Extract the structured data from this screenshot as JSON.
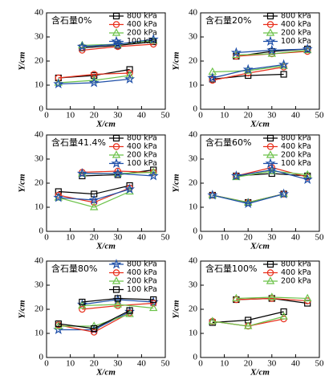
{
  "chart_data": [
    {
      "type": "line",
      "title": "含石量0%",
      "xlabel": "X/cm",
      "ylabel": "Y/cm",
      "xlim": [
        0,
        50
      ],
      "ylim": [
        0,
        40
      ],
      "xticks": [
        0,
        10,
        20,
        30,
        40,
        50
      ],
      "yticks": [
        0,
        10,
        20,
        30,
        40
      ],
      "series": [
        {
          "name": "800 kPa",
          "color": "#000000",
          "marker": "square",
          "x": [
            5,
            20,
            35,
            null,
            15,
            30,
            45
          ],
          "values": [
            13,
            14,
            16.5,
            null,
            25.5,
            26.5,
            28
          ]
        },
        {
          "name": "400 kPa",
          "color": "#e8301c",
          "marker": "circle",
          "x": [
            5,
            20,
            35,
            null,
            15,
            30,
            45
          ],
          "values": [
            13,
            14.5,
            15,
            null,
            24.5,
            26,
            27
          ]
        },
        {
          "name": "200 kPa",
          "color": "#6cc24a",
          "marker": "triangle",
          "x": [
            5,
            20,
            35,
            null,
            15,
            30,
            45
          ],
          "values": [
            11,
            12,
            14,
            null,
            26.5,
            27,
            28.5
          ]
        },
        {
          "name": "100 kPa",
          "color": "#1f4fa8",
          "marker": "star",
          "x": [
            5,
            20,
            35,
            null,
            15,
            30,
            45
          ],
          "values": [
            10.5,
            11,
            12.5,
            null,
            26,
            27,
            29
          ]
        }
      ]
    },
    {
      "type": "line",
      "title": "含石量20%",
      "xlabel": "X/cm",
      "ylabel": "Y/cm",
      "xlim": [
        0,
        50
      ],
      "ylim": [
        0,
        40
      ],
      "xticks": [
        0,
        10,
        20,
        30,
        40,
        50
      ],
      "yticks": [
        0,
        10,
        20,
        30,
        40
      ],
      "series": [
        {
          "name": "800 kPa",
          "color": "#000000",
          "marker": "square",
          "x": [
            5,
            20,
            35,
            null,
            15,
            30,
            45
          ],
          "values": [
            12.5,
            14,
            14.5,
            null,
            22,
            24,
            25
          ]
        },
        {
          "name": "400 kPa",
          "color": "#e8301c",
          "marker": "circle",
          "x": [
            5,
            20,
            35,
            null,
            15,
            30,
            45
          ],
          "values": [
            12,
            15,
            17.5,
            null,
            22,
            23,
            24
          ]
        },
        {
          "name": "200 kPa",
          "color": "#6cc24a",
          "marker": "triangle",
          "x": [
            5,
            20,
            35,
            null,
            15,
            30,
            45
          ],
          "values": [
            15.5,
            16,
            18,
            null,
            22.5,
            23,
            24.5
          ]
        },
        {
          "name": "100 kPa",
          "color": "#1f4fa8",
          "marker": "star",
          "x": [
            5,
            20,
            35,
            null,
            15,
            30,
            45
          ],
          "values": [
            13,
            16.5,
            18.5,
            null,
            23.5,
            24.5,
            25
          ]
        }
      ]
    },
    {
      "type": "line",
      "title": "含石量41.4%",
      "xlabel": "X/cm",
      "ylabel": "Y/cm",
      "xlim": [
        0,
        50
      ],
      "ylim": [
        0,
        40
      ],
      "xticks": [
        0,
        10,
        20,
        30,
        40,
        50
      ],
      "yticks": [
        0,
        10,
        20,
        30,
        40
      ],
      "series": [
        {
          "name": "800 kPa",
          "color": "#000000",
          "marker": "square",
          "x": [
            5,
            20,
            35,
            null,
            15,
            30,
            45
          ],
          "values": [
            16.5,
            15.5,
            19,
            null,
            23,
            23.5,
            25.5
          ]
        },
        {
          "name": "400 kPa",
          "color": "#e8301c",
          "marker": "circle",
          "x": [
            5,
            20,
            35,
            null,
            15,
            30,
            45
          ],
          "values": [
            15,
            12,
            18,
            null,
            24.5,
            25,
            24.5
          ]
        },
        {
          "name": "200 kPa",
          "color": "#6cc24a",
          "marker": "triangle",
          "x": [
            5,
            20,
            35,
            null,
            15,
            30,
            45
          ],
          "values": [
            14,
            10,
            16.5,
            null,
            24,
            24,
            24.5
          ]
        },
        {
          "name": "100 kPa",
          "color": "#1f4fa8",
          "marker": "star",
          "x": [
            5,
            20,
            35,
            null,
            15,
            30,
            45
          ],
          "values": [
            14,
            13,
            17.5,
            null,
            24,
            24,
            23
          ]
        }
      ]
    },
    {
      "type": "line",
      "title": "含石量60%",
      "xlabel": "X/cm",
      "ylabel": "Y/cm",
      "xlim": [
        0,
        50
      ],
      "ylim": [
        0,
        40
      ],
      "xticks": [
        0,
        10,
        20,
        30,
        40,
        50
      ],
      "yticks": [
        0,
        10,
        20,
        30,
        40
      ],
      "series": [
        {
          "name": "800 kPa",
          "color": "#000000",
          "marker": "square",
          "x": [
            5,
            20,
            35,
            null,
            15,
            30,
            45
          ],
          "values": [
            15,
            12,
            15.5,
            null,
            23,
            24,
            23
          ]
        },
        {
          "name": "400 kPa",
          "color": "#e8301c",
          "marker": "circle",
          "x": [
            5,
            20,
            35,
            null,
            15,
            30,
            45
          ],
          "values": [
            15,
            12,
            15.5,
            null,
            23,
            26.5,
            22.5
          ]
        },
        {
          "name": "200 kPa",
          "color": "#6cc24a",
          "marker": "triangle",
          "x": [
            5,
            20,
            35,
            null,
            15,
            30,
            45
          ],
          "values": [
            15,
            12,
            15.5,
            null,
            22.5,
            25,
            23.5
          ]
        },
        {
          "name": "100 kPa",
          "color": "#1f4fa8",
          "marker": "star",
          "x": [
            5,
            20,
            35,
            null,
            15,
            30,
            45
          ],
          "values": [
            15,
            11.5,
            15.5,
            null,
            23,
            25.5,
            21.5
          ]
        }
      ]
    },
    {
      "type": "line",
      "title": "含石量80%",
      "xlabel": "X/cm",
      "ylabel": "Y/cm",
      "xlim": [
        0,
        50
      ],
      "ylim": [
        0,
        40
      ],
      "xticks": [
        0,
        10,
        20,
        30,
        40,
        50
      ],
      "yticks": [
        0,
        10,
        20,
        30,
        40
      ],
      "series": [
        {
          "name": "800 kPa",
          "color": "#1f4fa8",
          "marker": "star",
          "x": [
            5,
            20,
            35,
            null,
            15,
            30,
            45
          ],
          "values": [
            11.5,
            11.5,
            19,
            null,
            22,
            24,
            23
          ]
        },
        {
          "name": "400 kPa",
          "color": "#e8301c",
          "marker": "circle",
          "x": [
            5,
            20,
            35,
            null,
            15,
            30,
            45
          ],
          "values": [
            13.5,
            10.5,
            18.5,
            null,
            20,
            21.5,
            22.5
          ]
        },
        {
          "name": "200 kPa",
          "color": "#6cc24a",
          "marker": "triangle",
          "x": [
            5,
            20,
            35,
            null,
            15,
            30,
            45
          ],
          "values": [
            13,
            13,
            18,
            null,
            21.5,
            22,
            20.5
          ]
        },
        {
          "name": "100 kPa",
          "color": "#000000",
          "marker": "square",
          "x": [
            5,
            20,
            35,
            null,
            15,
            30,
            45
          ],
          "values": [
            14,
            12,
            19.5,
            null,
            23,
            24.5,
            24
          ]
        }
      ]
    },
    {
      "type": "line",
      "title": "含石量100%",
      "xlabel": "X/cm",
      "ylabel": "Y/cm",
      "xlim": [
        0,
        50
      ],
      "ylim": [
        0,
        40
      ],
      "xticks": [
        0,
        10,
        20,
        30,
        40,
        50
      ],
      "yticks": [
        0,
        10,
        20,
        30,
        40
      ],
      "series": [
        {
          "name": "800 kPa",
          "color": "#000000",
          "marker": "square",
          "x": [
            5,
            20,
            35,
            null,
            15,
            30,
            45
          ],
          "values": [
            14.5,
            15.5,
            19,
            null,
            24,
            24.5,
            22.5
          ]
        },
        {
          "name": "400 kPa",
          "color": "#e8301c",
          "marker": "circle",
          "x": [
            5,
            20,
            35,
            null,
            15,
            30,
            45
          ],
          "values": [
            15,
            13,
            16,
            null,
            24,
            24.5,
            23.5
          ]
        },
        {
          "name": "200 kPa",
          "color": "#6cc24a",
          "marker": "triangle",
          "x": [
            5,
            20,
            35,
            null,
            15,
            30,
            45
          ],
          "values": [
            15,
            13,
            17,
            null,
            24.5,
            25,
            24.5
          ]
        }
      ]
    }
  ]
}
